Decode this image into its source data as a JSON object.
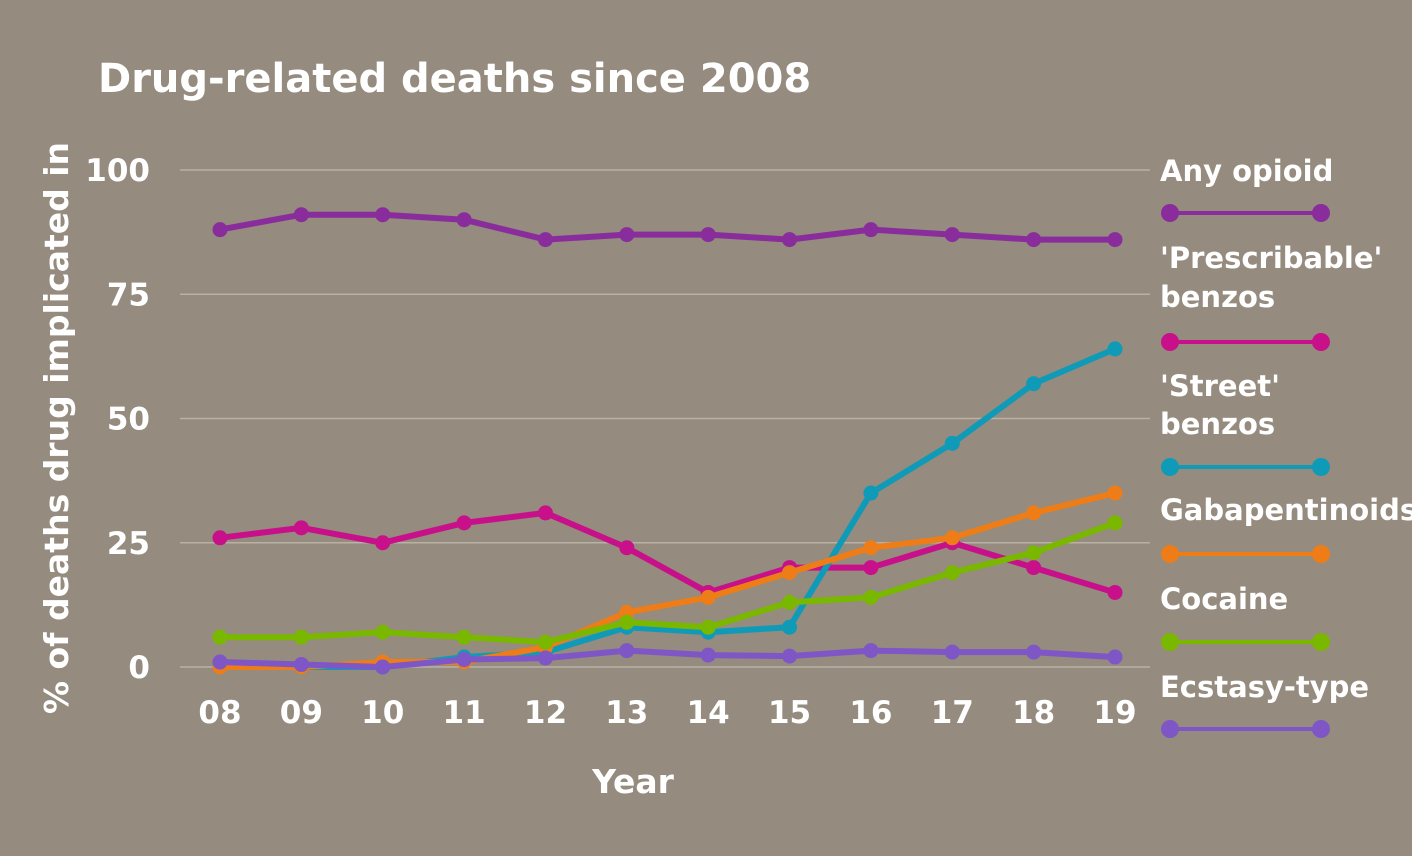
{
  "chart_data": {
    "type": "line",
    "title": "Drug-related deaths since 2008",
    "xlabel": "Year",
    "ylabel": "% of deaths drug implicated in",
    "ylim": [
      0,
      100
    ],
    "yticks": [
      "0",
      "25",
      "50",
      "75",
      "100"
    ],
    "ytick_values": [
      0,
      25,
      50,
      75,
      100
    ],
    "x": [
      "08",
      "09",
      "10",
      "11",
      "12",
      "13",
      "14",
      "15",
      "16",
      "17",
      "18",
      "19"
    ],
    "grid": true,
    "legend_position": "right",
    "series": [
      {
        "name": "Any opioid",
        "color": "#8a2d9c",
        "values": [
          88,
          91,
          91,
          90,
          86,
          87,
          87,
          86,
          88,
          87,
          86,
          86
        ]
      },
      {
        "name": "'Prescribable' benzos",
        "name_lines": [
          "'Prescribable'",
          "benzos"
        ],
        "color": "#c8108a",
        "values": [
          26,
          28,
          25,
          29,
          31,
          24,
          15,
          20,
          20,
          25,
          20,
          15
        ]
      },
      {
        "name": "'Street' benzos",
        "name_lines": [
          "'Street'",
          "benzos"
        ],
        "color": "#0f9bb8",
        "values": [
          0.5,
          0,
          0,
          2,
          3,
          8,
          7,
          8,
          35,
          45,
          57,
          64
        ]
      },
      {
        "name": "Gabapentinoids",
        "color": "#ee7d17",
        "values": [
          0,
          0,
          1,
          1,
          4,
          11,
          14,
          19,
          24,
          26,
          31,
          35
        ]
      },
      {
        "name": "Cocaine",
        "color": "#7ab800",
        "values": [
          6,
          6,
          7,
          6,
          5,
          9,
          8,
          13,
          14,
          19,
          23,
          29
        ]
      },
      {
        "name": "Ecstasy-type",
        "color": "#7f56c6",
        "values": [
          1,
          0.5,
          0,
          1.5,
          1.8,
          3.3,
          2.4,
          2.2,
          3.3,
          3,
          3,
          2
        ]
      }
    ]
  }
}
